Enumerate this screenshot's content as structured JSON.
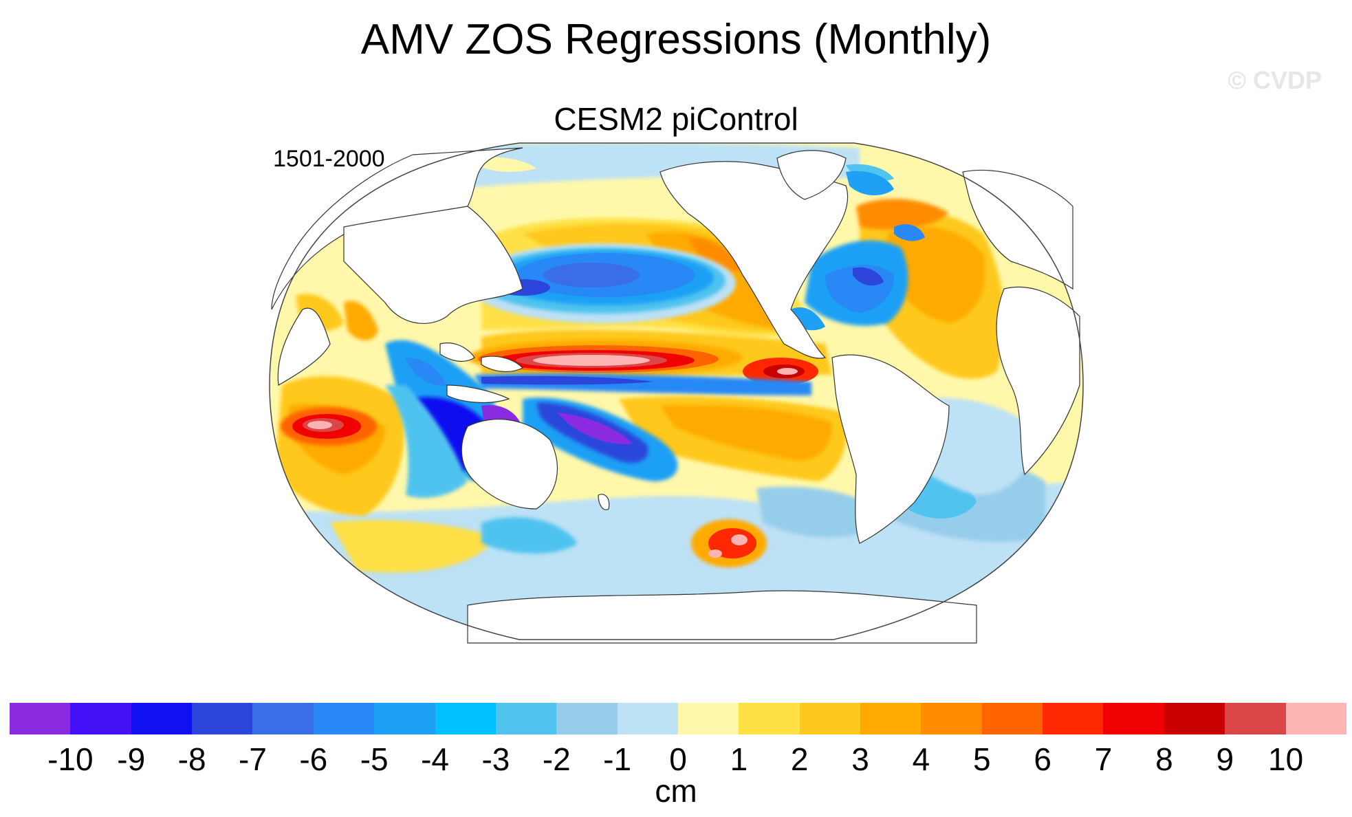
{
  "title": "AMV ZOS Regressions (Monthly)",
  "watermark": "© CVDP",
  "subtitle": "CESM2 piControl",
  "period": "1501-2000",
  "colorbar": {
    "units": "cm",
    "ticks": [
      "-10",
      "-9",
      "-8",
      "-7",
      "-6",
      "-5",
      "-4",
      "-3",
      "-2",
      "-1",
      "0",
      "1",
      "2",
      "3",
      "4",
      "5",
      "6",
      "7",
      "8",
      "9",
      "10"
    ],
    "colors": [
      "#8a2be2",
      "#4410f5",
      "#1010f0",
      "#2c46dc",
      "#3a6ee6",
      "#2888f5",
      "#1ea0f5",
      "#00c0ff",
      "#50c3ef",
      "#96cdeb",
      "#bde1f5",
      "#fff8aa",
      "#ffe146",
      "#ffc81e",
      "#ffaa00",
      "#ff8c00",
      "#ff6400",
      "#ff2800",
      "#f00000",
      "#c80000",
      "#dc4646",
      "#ffb4b4"
    ]
  },
  "map": {
    "projection": "robinson",
    "center_longitude": 180,
    "field": "ZOS regression",
    "features": [
      {
        "name": "north-pacific-negative",
        "value": -6
      },
      {
        "name": "kuroshio-extension-positive",
        "value": 4
      },
      {
        "name": "tropical-pacific-north-positive",
        "value": 10
      },
      {
        "name": "equatorial-pacific-negative",
        "value": -5
      },
      {
        "name": "southwest-pacific-negative",
        "value": -10
      },
      {
        "name": "southeast-pacific-positive",
        "value": 4
      },
      {
        "name": "indian-ocean-southwest-positive",
        "value": 10
      },
      {
        "name": "maritime-continent-negative",
        "value": -9
      },
      {
        "name": "north-atlantic-subpolar-negative",
        "value": -6
      },
      {
        "name": "atlantic-positive",
        "value": 3
      },
      {
        "name": "southern-ocean-negative",
        "value": -1
      },
      {
        "name": "south-pacific-positive-eddy",
        "value": 8
      }
    ]
  }
}
